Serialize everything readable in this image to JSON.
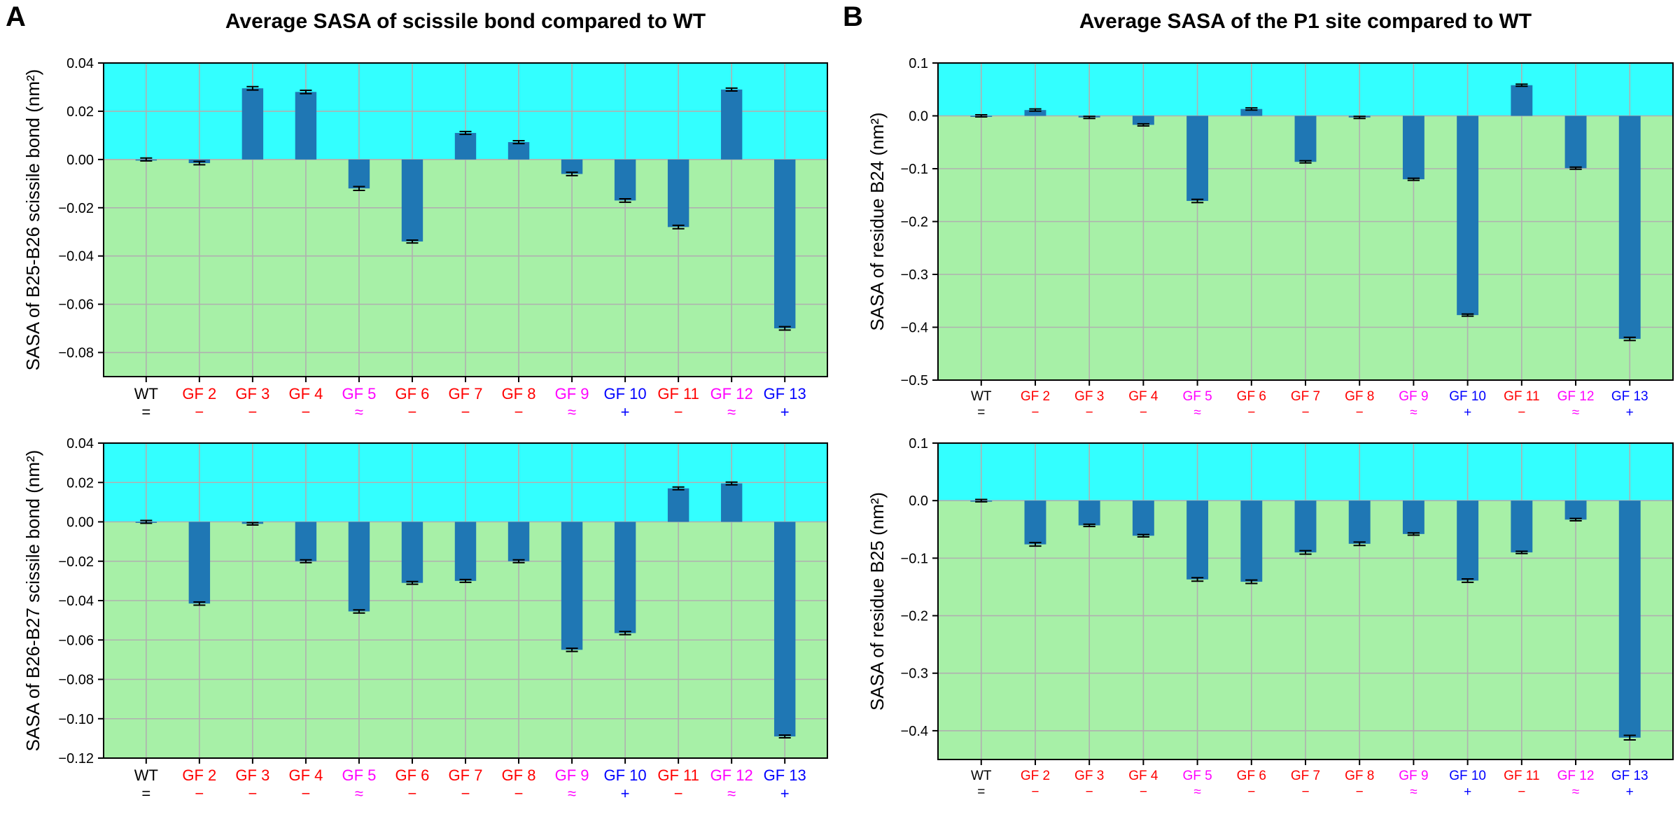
{
  "figure": {
    "panels": [
      {
        "letter": "A",
        "title": "Average SASA of scissile bond compared to WT"
      },
      {
        "letter": "B",
        "title": "Average SASA of the P1 site compared to WT"
      }
    ],
    "colors": {
      "bar": "#1f77b4",
      "positive_region": "#33ffff",
      "negative_region": "#a7f0a7",
      "grid": "#b0b0b0",
      "error_bar": "#000000",
      "label_black": "#000000",
      "label_red": "#ff0000",
      "label_magenta": "#ff00ff",
      "label_blue": "#0000ff"
    }
  },
  "chart_data": [
    {
      "type": "bar",
      "panel": "A",
      "title": "Average SASA of scissile bond compared to WT",
      "ylabel": "SASA of B25-B26 scissile bond (nm²)",
      "categories": [
        "WT",
        "GF 2",
        "GF 3",
        "GF 4",
        "GF 5",
        "GF 6",
        "GF 7",
        "GF 8",
        "GF 9",
        "GF 10",
        "GF 11",
        "GF 12",
        "GF 13"
      ],
      "category_symbols": [
        "=",
        "−",
        "−",
        "−",
        "≈",
        "−",
        "−",
        "−",
        "≈",
        "+",
        "−",
        "≈",
        "+"
      ],
      "category_colors": [
        "black",
        "red",
        "red",
        "red",
        "magenta",
        "red",
        "red",
        "red",
        "magenta",
        "blue",
        "red",
        "magenta",
        "blue"
      ],
      "values": [
        0.0,
        -0.0015,
        0.0295,
        0.028,
        -0.012,
        -0.034,
        0.011,
        0.0072,
        -0.006,
        -0.017,
        -0.028,
        0.029,
        -0.07
      ],
      "errors": [
        0.0006,
        0.0007,
        0.0007,
        0.0007,
        0.0008,
        0.0006,
        0.0006,
        0.0006,
        0.0007,
        0.0007,
        0.0007,
        0.0006,
        0.0007
      ],
      "ylim": [
        -0.09,
        0.04
      ],
      "yticks": [
        -0.08,
        -0.06,
        -0.04,
        -0.02,
        0.0,
        0.02,
        0.04
      ],
      "ytick_labels": [
        "−0.08",
        "−0.06",
        "−0.04",
        "−0.02",
        "0.00",
        "0.02",
        "0.04"
      ],
      "grid": true
    },
    {
      "type": "bar",
      "panel": "A",
      "ylabel": "SASA of B26-B27 scissile bond (nm²)",
      "categories": [
        "WT",
        "GF 2",
        "GF 3",
        "GF 4",
        "GF 5",
        "GF 6",
        "GF 7",
        "GF 8",
        "GF 9",
        "GF 10",
        "GF 11",
        "GF 12",
        "GF 13"
      ],
      "category_symbols": [
        "=",
        "−",
        "−",
        "−",
        "≈",
        "−",
        "−",
        "−",
        "≈",
        "+",
        "−",
        "≈",
        "+"
      ],
      "category_colors": [
        "black",
        "red",
        "red",
        "red",
        "magenta",
        "red",
        "red",
        "red",
        "magenta",
        "blue",
        "red",
        "magenta",
        "blue"
      ],
      "values": [
        0.0,
        -0.0415,
        -0.001,
        -0.02,
        -0.0455,
        -0.031,
        -0.03,
        -0.02,
        -0.065,
        -0.0565,
        0.017,
        0.0195,
        -0.109
      ],
      "errors": [
        0.0007,
        0.0008,
        0.0006,
        0.0007,
        0.0008,
        0.0007,
        0.0007,
        0.0007,
        0.0008,
        0.0008,
        0.0007,
        0.0007,
        0.0007
      ],
      "ylim": [
        -0.12,
        0.04
      ],
      "yticks": [
        -0.12,
        -0.1,
        -0.08,
        -0.06,
        -0.04,
        -0.02,
        0.0,
        0.02,
        0.04
      ],
      "ytick_labels": [
        "−0.12",
        "−0.10",
        "−0.08",
        "−0.06",
        "−0.04",
        "−0.02",
        "0.00",
        "0.02",
        "0.04"
      ],
      "grid": true
    },
    {
      "type": "bar",
      "panel": "B",
      "title": "Average SASA of the P1 site compared to WT",
      "ylabel": "SASA of residue B24 (nm²)",
      "categories": [
        "WT",
        "GF 2",
        "GF 3",
        "GF 4",
        "GF 5",
        "GF 6",
        "GF 7",
        "GF 8",
        "GF 9",
        "GF 10",
        "GF 11",
        "GF 12",
        "GF 13"
      ],
      "category_symbols": [
        "=",
        "−",
        "−",
        "−",
        "≈",
        "−",
        "−",
        "−",
        "≈",
        "+",
        "−",
        "≈",
        "+"
      ],
      "category_colors": [
        "black",
        "red",
        "red",
        "red",
        "magenta",
        "red",
        "red",
        "red",
        "magenta",
        "blue",
        "red",
        "magenta",
        "blue"
      ],
      "values": [
        0.0,
        0.011,
        -0.003,
        -0.017,
        -0.161,
        0.013,
        -0.087,
        -0.003,
        -0.12,
        -0.377,
        0.058,
        -0.099,
        -0.422
      ],
      "errors": [
        0.002,
        0.002,
        0.002,
        0.002,
        0.003,
        0.002,
        0.002,
        0.002,
        0.002,
        0.002,
        0.002,
        0.002,
        0.003
      ],
      "ylim": [
        -0.5,
        0.1
      ],
      "yticks": [
        -0.5,
        -0.4,
        -0.3,
        -0.2,
        -0.1,
        0.0,
        0.1
      ],
      "ytick_labels": [
        "−0.5",
        "−0.4",
        "−0.3",
        "−0.2",
        "−0.1",
        "0.0",
        "0.1"
      ],
      "grid": true
    },
    {
      "type": "bar",
      "panel": "B",
      "ylabel": "SASA of residue B25 (nm²)",
      "categories": [
        "WT",
        "GF 2",
        "GF 3",
        "GF 4",
        "GF 5",
        "GF 6",
        "GF 7",
        "GF 8",
        "GF 9",
        "GF 10",
        "GF 11",
        "GF 12",
        "GF 13"
      ],
      "category_symbols": [
        "=",
        "−",
        "−",
        "−",
        "≈",
        "−",
        "−",
        "−",
        "≈",
        "+",
        "−",
        "≈",
        "+"
      ],
      "category_colors": [
        "black",
        "red",
        "red",
        "red",
        "magenta",
        "red",
        "red",
        "red",
        "magenta",
        "blue",
        "red",
        "magenta",
        "blue"
      ],
      "values": [
        0.0,
        -0.076,
        -0.043,
        -0.061,
        -0.137,
        -0.141,
        -0.09,
        -0.075,
        -0.058,
        -0.139,
        -0.09,
        -0.033,
        -0.412
      ],
      "errors": [
        0.002,
        0.003,
        0.002,
        0.002,
        0.003,
        0.003,
        0.003,
        0.003,
        0.002,
        0.003,
        0.002,
        0.002,
        0.004
      ],
      "ylim": [
        -0.45,
        0.1
      ],
      "yticks": [
        -0.4,
        -0.3,
        -0.2,
        -0.1,
        0.0,
        0.1
      ],
      "ytick_labels": [
        "−0.4",
        "−0.3",
        "−0.2",
        "−0.1",
        "0.0",
        "0.1"
      ],
      "grid": true
    }
  ]
}
